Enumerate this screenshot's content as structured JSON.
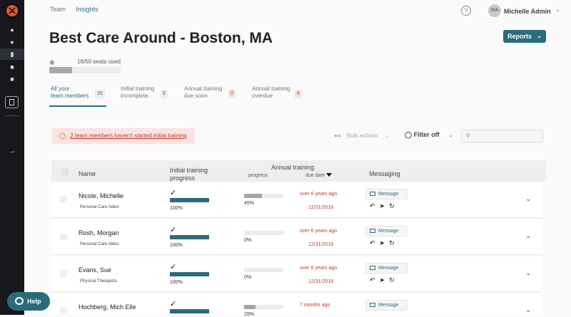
{
  "breadcrumb": {
    "parent": "Team",
    "current": "Insights"
  },
  "header": {
    "user_initials": "MA",
    "user_name": "Michelle Admin"
  },
  "page": {
    "title": "Best Care Around - Boston, MA",
    "reports_label": "Reports"
  },
  "seats": {
    "text": "16/50 seats used",
    "used": 16,
    "total": 50
  },
  "tabs": [
    {
      "line1": "All your",
      "line2": "team members",
      "count": "16",
      "active": true
    },
    {
      "line1": "Initial training",
      "line2": "incomplete",
      "count": "9"
    },
    {
      "line1": "Annual training",
      "line2": "due soon",
      "count": "0"
    },
    {
      "line1": "Annual training",
      "line2": "overdue",
      "count": "6"
    }
  ],
  "toolbar": {
    "alert_text": "2 team members haven't started initial training",
    "bulk_actions": "Bulk actions",
    "filter": "Filter off"
  },
  "table": {
    "headers": {
      "name": "Name",
      "initial_1": "Initial training",
      "initial_2": "progress",
      "annual": "Annual training",
      "annual_progress": "progress",
      "annual_due": "due date",
      "messaging": "Messaging"
    },
    "rows": [
      {
        "name": "Nicole, Michelle",
        "role": "Personal Care Aides",
        "initial_pct": "100%",
        "annual_pct": "45%",
        "annual_fill": 0.45,
        "ago": "over 6 years ago",
        "due": "12/31/2018",
        "message": "Message"
      },
      {
        "name": "Rosh, Morgan",
        "role": "Personal Care Aides",
        "initial_pct": "100%",
        "annual_pct": "0%",
        "annual_fill": 0,
        "ago": "over 6 years ago",
        "due": "12/31/2018",
        "message": "Message"
      },
      {
        "name": "Evans, Sue",
        "role": "Physical Therapists",
        "initial_pct": "100%",
        "annual_pct": "0%",
        "annual_fill": 0,
        "ago": "over 6 years ago",
        "due": "12/31/2018",
        "message": "Message"
      },
      {
        "name": "Hochberg, Mich Elle",
        "role": "",
        "initial_pct": "",
        "annual_pct": "29%",
        "annual_fill": 0.29,
        "ago": "7 months ago",
        "due": "",
        "message": "Message"
      }
    ]
  },
  "help": {
    "label": "Help"
  },
  "colors": {
    "brand": "#2c6b7b",
    "alert": "#c0392b",
    "sidebar": "#16181c"
  }
}
